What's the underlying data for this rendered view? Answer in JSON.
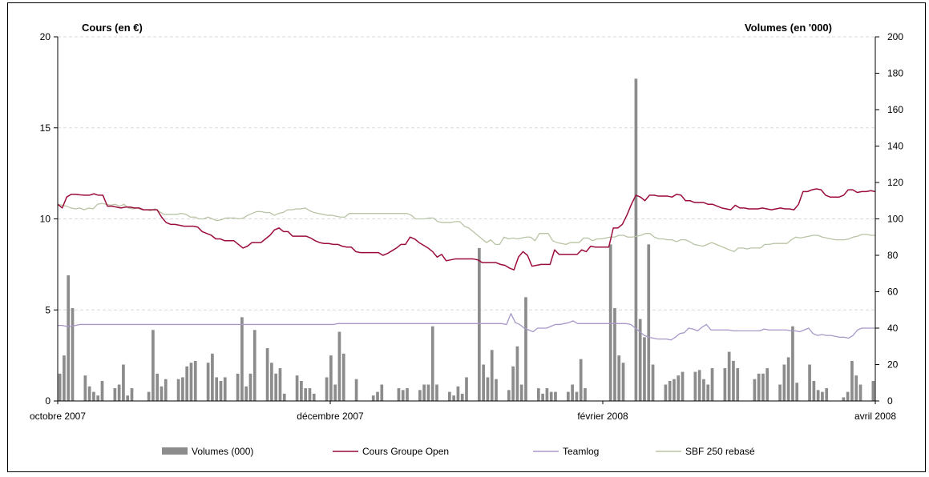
{
  "chart_data": {
    "type": "bar+line",
    "left_axis": {
      "title": "Cours (en €)",
      "range": [
        0,
        20
      ],
      "ticks": [
        0,
        5,
        10,
        15,
        20
      ]
    },
    "right_axis": {
      "title": "Volumes (en '000)",
      "range": [
        0,
        200
      ],
      "ticks": [
        0,
        20,
        40,
        60,
        80,
        100,
        120,
        140,
        160,
        180,
        200
      ]
    },
    "x_axis": {
      "labels": [
        "octobre 2007",
        "décembre 2007",
        "février 2008",
        "avril 2008"
      ],
      "range": [
        "2007-10-01",
        "2008-04-01"
      ]
    },
    "grid": "horizontal dashed",
    "legend_position": "bottom",
    "colors": {
      "volumes": "#8c8c8c",
      "cours": "#9b0c3c",
      "teamlog": "#a898c8",
      "sbf": "#b8c4a4"
    },
    "series": [
      {
        "name": "Volumes (000)",
        "kind": "bar",
        "axis": "right",
        "values": [
          15,
          25,
          69,
          51,
          0,
          0,
          14,
          8,
          5,
          3,
          11,
          0,
          0,
          7,
          9,
          20,
          3,
          7,
          0,
          0,
          0,
          5,
          39,
          15,
          8,
          12,
          0,
          0,
          12,
          13,
          19,
          21,
          22,
          0,
          0,
          21,
          26,
          13,
          11,
          13,
          0,
          0,
          15,
          46,
          8,
          15,
          39,
          0,
          0,
          29,
          21,
          15,
          18,
          4,
          0,
          0,
          14,
          11,
          7,
          7,
          4,
          0,
          0,
          13,
          25,
          9,
          38,
          26,
          0,
          0,
          12,
          0,
          0,
          0,
          3,
          5,
          9,
          0,
          0,
          0,
          7,
          6,
          7,
          0,
          0,
          6,
          9,
          9,
          41,
          9,
          0,
          0,
          5,
          3,
          8,
          4,
          13,
          0,
          0,
          84,
          20,
          13,
          28,
          12,
          0,
          0,
          6,
          19,
          30,
          9,
          57,
          0,
          0,
          7,
          4,
          7,
          5,
          5,
          0,
          0,
          5,
          9,
          5,
          23,
          7,
          0,
          0,
          0,
          0,
          0,
          86,
          51,
          25,
          21,
          0,
          0,
          177,
          45,
          35,
          86,
          20,
          0,
          0,
          9,
          11,
          12,
          14,
          16,
          0,
          0,
          16,
          17,
          12,
          9,
          18,
          0,
          0,
          18,
          27,
          22,
          18,
          0,
          0,
          0,
          12,
          15,
          15,
          18,
          0,
          0,
          9,
          20,
          24,
          41,
          10,
          0,
          0,
          20,
          11,
          6,
          5,
          7,
          0,
          0,
          0,
          2,
          5,
          22,
          14,
          9,
          0,
          0,
          11
        ]
      },
      {
        "name": "Cours Groupe Open",
        "kind": "line",
        "axis": "left",
        "values": [
          10.8,
          10.6,
          11.2,
          11.35,
          11.35,
          11.32,
          11.3,
          11.3,
          11.38,
          11.3,
          11.3,
          10.7,
          10.7,
          10.65,
          10.6,
          10.65,
          10.65,
          10.6,
          10.6,
          10.5,
          10.5,
          10.5,
          10.5,
          10.1,
          9.8,
          9.7,
          9.7,
          9.65,
          9.6,
          9.6,
          9.6,
          9.55,
          9.3,
          9.2,
          9.1,
          8.9,
          8.9,
          8.8,
          8.8,
          8.8,
          8.6,
          8.4,
          8.5,
          8.7,
          8.7,
          8.7,
          8.9,
          9.1,
          9.4,
          9.5,
          9.3,
          9.3,
          9.05,
          9.05,
          9.05,
          9.05,
          8.95,
          8.8,
          8.7,
          8.65,
          8.65,
          8.6,
          8.6,
          8.5,
          8.45,
          8.45,
          8.2,
          8.15,
          8.15,
          8.15,
          8.15,
          8.15,
          8.0,
          8.1,
          8.25,
          8.4,
          8.6,
          8.6,
          9.0,
          8.9,
          8.7,
          8.55,
          8.4,
          8.2,
          7.9,
          8.05,
          7.7,
          7.75,
          7.8,
          7.8,
          7.8,
          7.8,
          7.8,
          7.75,
          7.6,
          7.6,
          7.6,
          7.6,
          7.5,
          7.45,
          7.3,
          7.2,
          7.9,
          8.2,
          8.0,
          7.4,
          7.45,
          7.5,
          7.5,
          7.5,
          8.3,
          8.05,
          8.05,
          8.05,
          8.05,
          8.05,
          8.3,
          8.2,
          8.5,
          8.45,
          8.45,
          8.45,
          8.45,
          9.5,
          9.5,
          9.7,
          10.2,
          10.8,
          11.3,
          11.2,
          11.0,
          11.3,
          11.3,
          11.25,
          11.25,
          11.25,
          11.2,
          11.35,
          11.3,
          11.0,
          11.0,
          10.9,
          10.9,
          10.9,
          10.8,
          10.8,
          10.7,
          10.6,
          10.55,
          10.5,
          10.75,
          10.6,
          10.6,
          10.55,
          10.55,
          10.55,
          10.6,
          10.55,
          10.5,
          10.55,
          10.6,
          10.55,
          10.55,
          10.5,
          10.8,
          11.5,
          11.5,
          11.6,
          11.65,
          11.6,
          11.3,
          11.2,
          11.2,
          11.2,
          11.3,
          11.6,
          11.6,
          11.45,
          11.5,
          11.5,
          11.55,
          11.5
        ]
      },
      {
        "name": "Teamlog",
        "kind": "line",
        "axis": "left",
        "values": [
          4.15,
          4.15,
          4.1,
          4.1,
          4.15,
          4.2,
          4.2,
          4.2,
          4.2,
          4.2,
          4.2,
          4.2,
          4.2,
          4.2,
          4.2,
          4.2,
          4.2,
          4.2,
          4.2,
          4.2,
          4.2,
          4.2,
          4.2,
          4.2,
          4.2,
          4.2,
          4.2,
          4.2,
          4.2,
          4.2,
          4.2,
          4.2,
          4.2,
          4.2,
          4.2,
          4.2,
          4.2,
          4.2,
          4.2,
          4.2,
          4.2,
          4.2,
          4.2,
          4.2,
          4.2,
          4.2,
          4.2,
          4.2,
          4.2,
          4.2,
          4.2,
          4.2,
          4.2,
          4.2,
          4.2,
          4.2,
          4.2,
          4.2,
          4.2,
          4.2,
          4.2,
          4.2,
          4.2,
          4.25,
          4.25,
          4.25,
          4.25,
          4.25,
          4.25,
          4.25,
          4.25,
          4.25,
          4.25,
          4.25,
          4.25,
          4.25,
          4.25,
          4.25,
          4.25,
          4.25,
          4.25,
          4.25,
          4.25,
          4.25,
          4.25,
          4.25,
          4.25,
          4.25,
          4.25,
          4.25,
          4.25,
          4.25,
          4.25,
          4.25,
          4.25,
          4.25,
          4.25,
          4.25,
          4.25,
          4.25,
          4.25,
          4.2,
          4.8,
          4.3,
          4.2,
          4.0,
          3.9,
          3.8,
          4.0,
          4.0,
          4.0,
          4.1,
          4.2,
          4.2,
          4.25,
          4.3,
          4.4,
          4.25,
          4.25,
          4.25,
          4.25,
          4.25,
          4.25,
          4.25,
          4.25,
          4.25,
          4.25,
          4.25,
          4.25,
          4.2,
          4.0,
          3.8,
          3.6,
          3.5,
          3.45,
          3.4,
          3.4,
          3.4,
          3.35,
          3.5,
          3.7,
          3.75,
          4.0,
          3.95,
          3.85,
          4.05,
          4.2,
          3.9,
          3.9,
          3.9,
          3.9,
          3.9,
          3.85,
          3.85,
          3.85,
          3.85,
          3.85,
          3.85,
          3.85,
          3.95,
          3.9,
          3.9,
          3.9,
          3.9,
          3.9,
          3.85,
          3.85,
          3.8,
          3.9,
          4.0,
          3.7,
          3.6,
          3.65,
          3.6,
          3.6,
          3.55,
          3.5,
          3.5,
          3.45,
          3.6,
          3.9,
          4.0,
          4.0,
          4.0,
          4.0
        ]
      },
      {
        "name": "SBF 250 rebasé",
        "kind": "line",
        "axis": "left",
        "values": [
          10.8,
          10.75,
          10.7,
          10.6,
          10.55,
          10.6,
          10.5,
          10.6,
          10.55,
          10.8,
          10.85,
          10.8,
          10.75,
          10.8,
          10.7,
          10.8,
          10.6,
          10.55,
          10.6,
          10.5,
          10.5,
          10.45,
          10.55,
          10.4,
          10.25,
          10.25,
          10.25,
          10.25,
          10.3,
          10.25,
          10.1,
          10.1,
          10.0,
          10.0,
          10.1,
          10.0,
          9.9,
          9.95,
          10.05,
          10.05,
          10.05,
          10.0,
          10.05,
          10.2,
          10.3,
          10.4,
          10.4,
          10.35,
          10.35,
          10.2,
          10.3,
          10.35,
          10.5,
          10.5,
          10.55,
          10.55,
          10.6,
          10.45,
          10.35,
          10.3,
          10.25,
          10.2,
          10.2,
          10.15,
          10.1,
          10.1,
          10.3,
          10.3,
          10.3,
          10.3,
          10.3,
          10.3,
          10.3,
          10.3,
          10.3,
          10.3,
          10.3,
          10.3,
          10.3,
          10.3,
          10.2,
          10.0,
          10.0,
          10.0,
          10.05,
          10.05,
          9.85,
          9.8,
          9.8,
          9.8,
          9.85,
          9.85,
          9.6,
          9.5,
          9.3,
          9.1,
          8.9,
          8.7,
          8.85,
          8.6,
          8.6,
          9.0,
          8.9,
          8.95,
          8.9,
          8.95,
          9.0,
          9.0,
          8.8,
          9.2,
          9.2,
          9.2,
          8.8,
          8.7,
          8.65,
          8.6,
          8.7,
          8.7,
          8.7,
          8.95,
          8.95,
          8.8,
          8.9,
          8.9,
          8.95,
          9.0,
          9.0,
          9.1,
          9.1,
          9.0,
          9.0,
          9.05,
          9.1,
          9.2,
          9.2,
          9.0,
          8.9,
          8.9,
          8.85,
          8.85,
          8.75,
          8.85,
          8.85,
          8.75,
          8.6,
          8.55,
          8.5,
          8.6,
          8.7,
          8.6,
          8.5,
          8.4,
          8.3,
          8.2,
          8.4,
          8.4,
          8.35,
          8.4,
          8.4,
          8.4,
          8.6,
          8.6,
          8.65,
          8.65,
          8.65,
          8.65,
          8.85,
          9.0,
          8.95,
          9.0,
          9.05,
          9.1,
          9.1,
          9.0,
          8.95,
          8.9,
          8.85,
          8.85,
          8.85,
          8.9,
          9.0,
          9.05,
          9.15,
          9.15,
          9.1,
          9.1
        ]
      }
    ]
  }
}
